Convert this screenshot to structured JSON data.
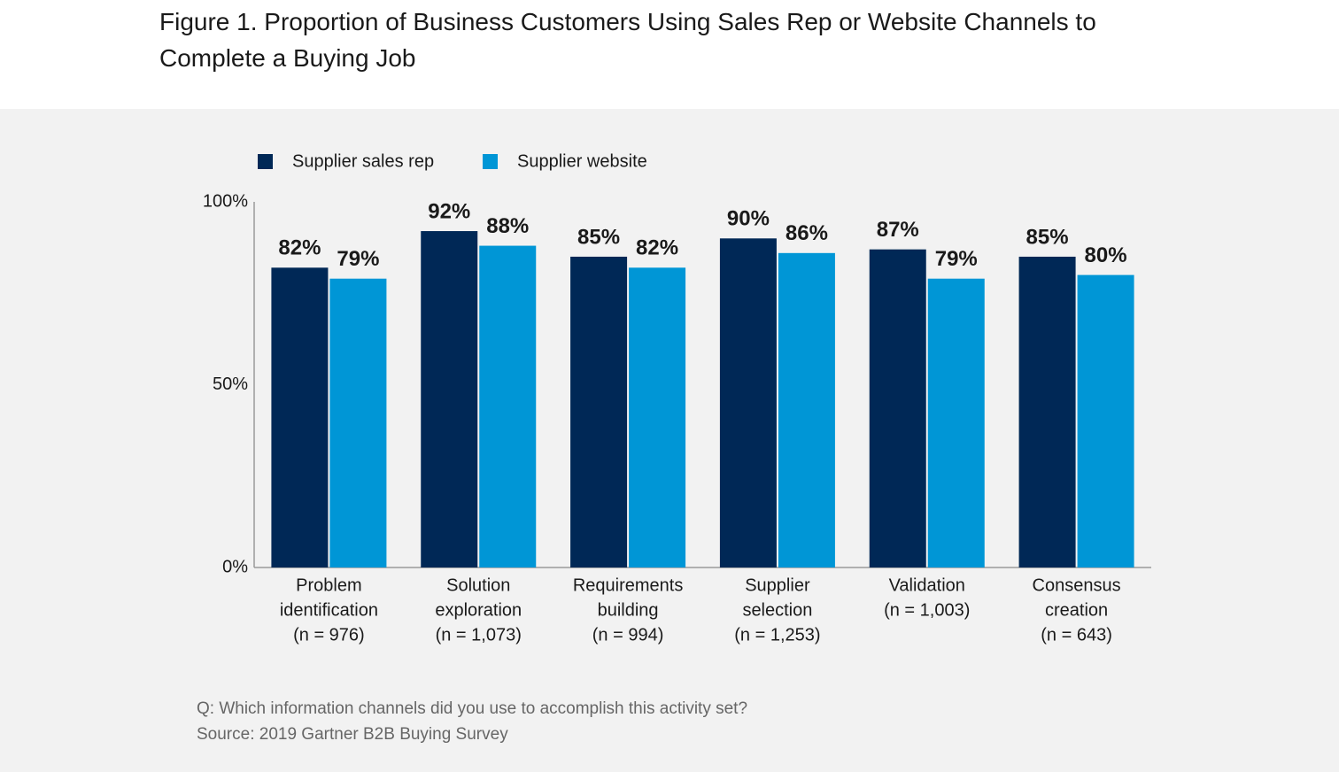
{
  "chart_data": {
    "type": "bar",
    "title": "Figure 1. Proportion of Business Customers Using Sales Rep or Website Channels to Complete a Buying Job",
    "categories": [
      [
        "Problem",
        "identification",
        "(n = 976)"
      ],
      [
        "Solution",
        "exploration",
        "(n = 1,073)"
      ],
      [
        "Requirements",
        "building",
        "(n = 994)"
      ],
      [
        "Supplier",
        "selection",
        "(n = 1,253)"
      ],
      [
        "Validation",
        "(n = 1,003)"
      ],
      [
        "Consensus",
        "creation",
        "(n = 643)"
      ]
    ],
    "series": [
      {
        "name": "Supplier sales rep",
        "color": "#002856",
        "values": [
          82,
          92,
          85,
          90,
          87,
          85
        ],
        "value_labels": [
          "82%",
          "92%",
          "85%",
          "90%",
          "87%",
          "85%"
        ]
      },
      {
        "name": "Supplier website",
        "color": "#0096d6",
        "values": [
          79,
          88,
          82,
          86,
          79,
          80
        ],
        "value_labels": [
          "79%",
          "88%",
          "82%",
          "86%",
          "79%",
          "80%"
        ]
      }
    ],
    "ylim": [
      0,
      100
    ],
    "yticks": [
      {
        "value": 0,
        "label": "0%"
      },
      {
        "value": 50,
        "label": "50%"
      },
      {
        "value": 100,
        "label": "100%"
      }
    ],
    "notes": [
      "Q: Which information channels did you use to accomplish this activity set?",
      "Source: 2019 Gartner B2B Buying Survey"
    ]
  }
}
